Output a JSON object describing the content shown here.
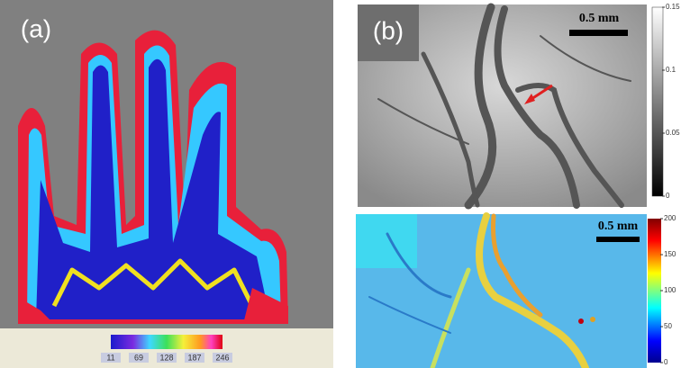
{
  "panels": [
    {
      "label": "(a)",
      "colorbar": {
        "ticks": [
          11,
          69,
          128,
          187,
          246
        ]
      }
    },
    {
      "label": "(b)",
      "top": {
        "scale_bar": "0.5 mm",
        "colorbar": {
          "ticks": [
            0,
            0.05,
            0.1,
            0.15
          ]
        }
      },
      "bottom": {
        "scale_bar": "0.5 mm",
        "colorbar": {
          "ticks": [
            0,
            50,
            100,
            150,
            200
          ]
        }
      }
    }
  ]
}
